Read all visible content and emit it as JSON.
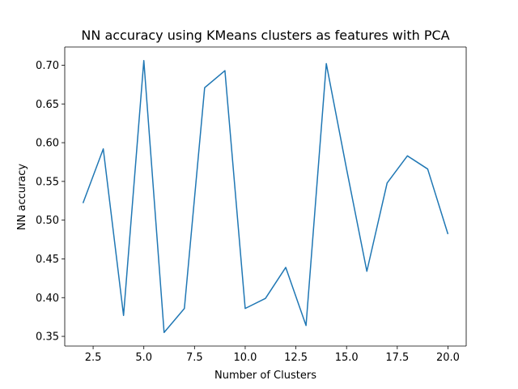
{
  "chart_data": {
    "type": "line",
    "title": "NN accuracy using KMeans clusters as features with PCA",
    "xlabel": "Number of Clusters",
    "ylabel": "NN accuracy",
    "xlim": [
      1.1,
      20.9
    ],
    "ylim": [
      0.3375,
      0.7235
    ],
    "xticks": [
      2.5,
      5.0,
      7.5,
      10.0,
      12.5,
      15.0,
      17.5,
      20.0
    ],
    "xtick_labels": [
      "2.5",
      "5.0",
      "7.5",
      "10.0",
      "12.5",
      "15.0",
      "17.5",
      "20.0"
    ],
    "yticks": [
      0.35,
      0.4,
      0.45,
      0.5,
      0.55,
      0.6,
      0.65,
      0.7
    ],
    "ytick_labels": [
      "0.35",
      "0.40",
      "0.45",
      "0.50",
      "0.55",
      "0.60",
      "0.65",
      "0.70"
    ],
    "grid": false,
    "legend": "none",
    "series": [
      {
        "color": "#1f77b4",
        "x": [
          2,
          3,
          4,
          5,
          6,
          7,
          8,
          9,
          10,
          11,
          12,
          13,
          14,
          15,
          16,
          17,
          18,
          19,
          20
        ],
        "y": [
          0.522,
          0.592,
          0.377,
          0.706,
          0.355,
          0.386,
          0.671,
          0.693,
          0.386,
          0.399,
          0.439,
          0.364,
          0.702,
          0.566,
          0.434,
          0.548,
          0.583,
          0.566,
          0.482
        ]
      }
    ]
  }
}
